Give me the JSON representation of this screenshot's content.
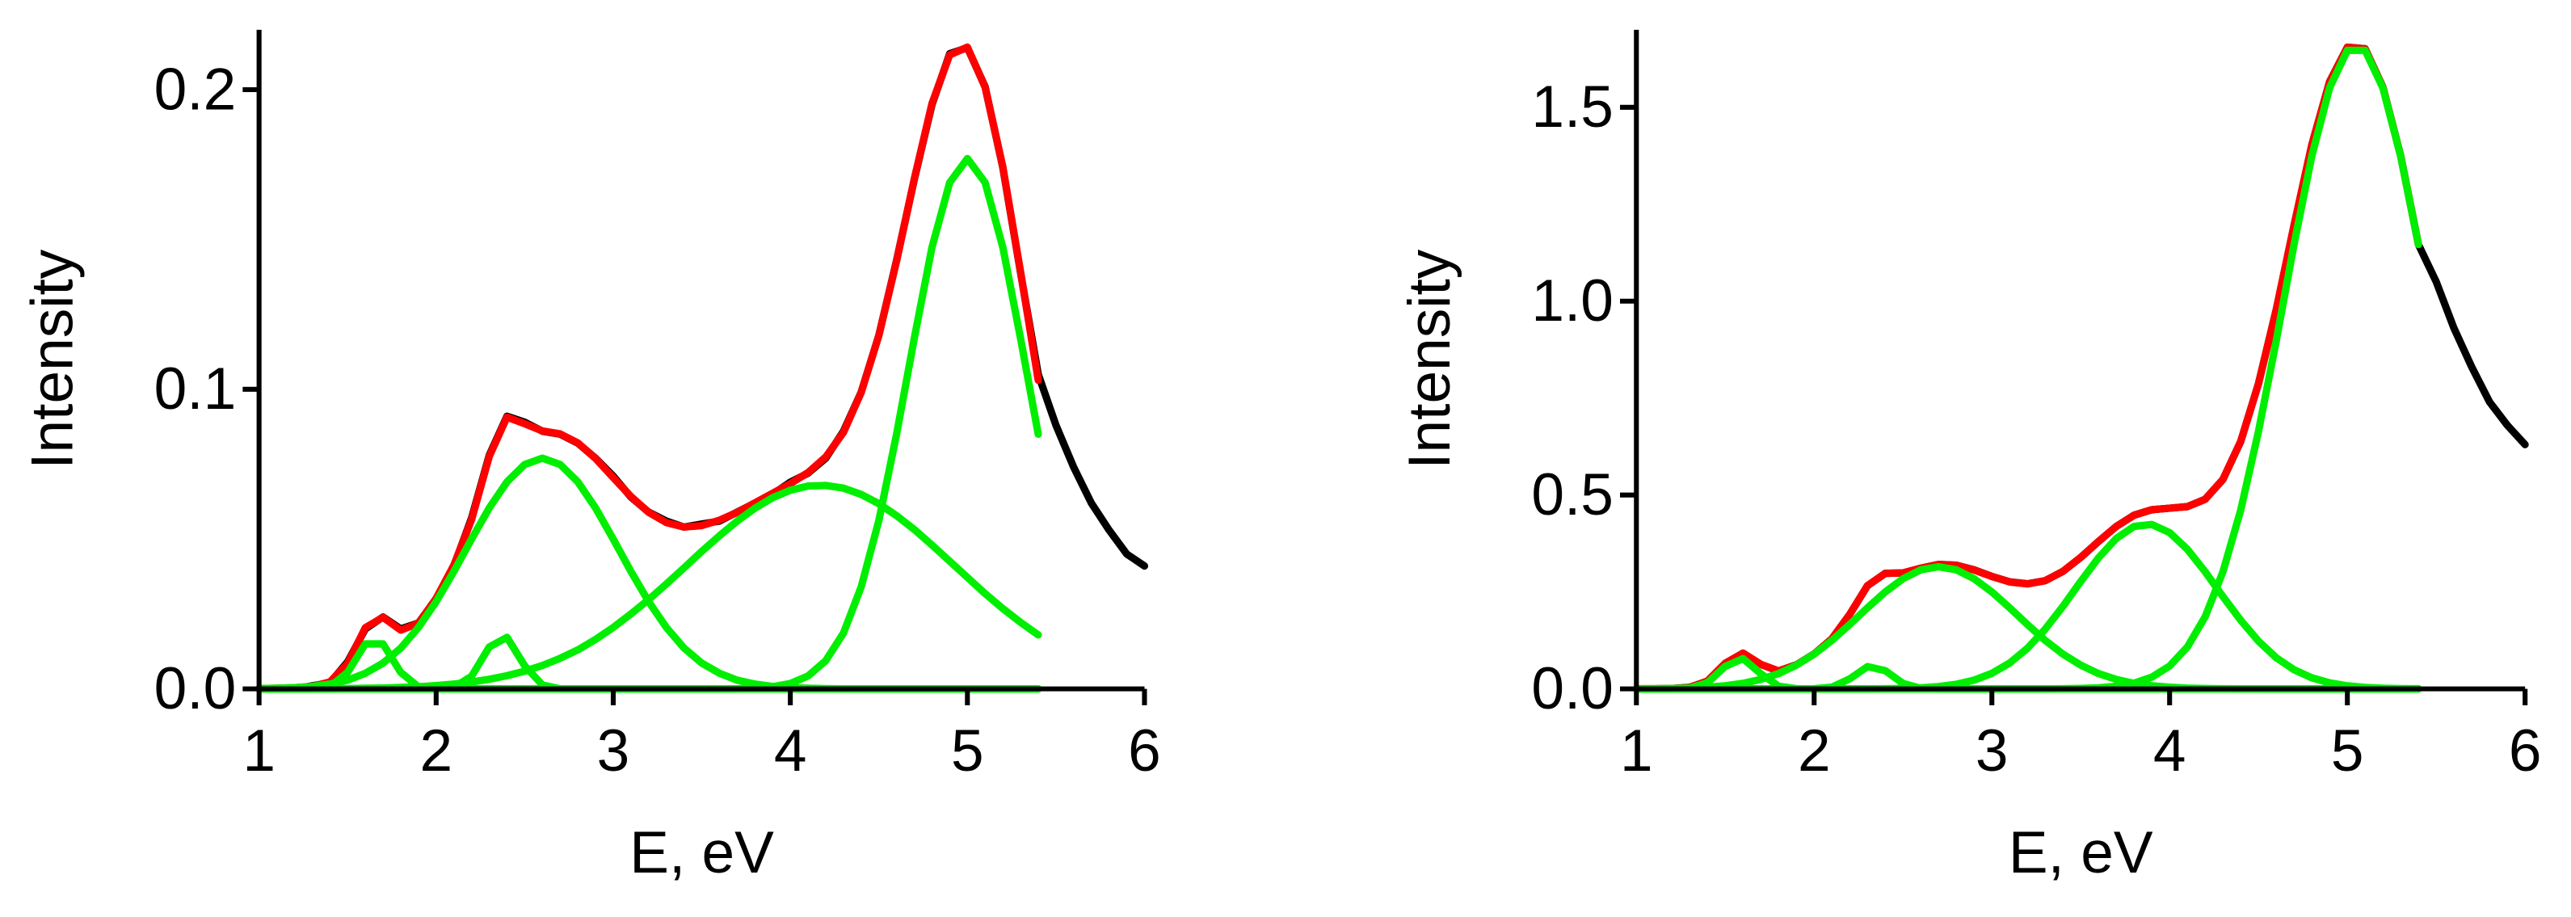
{
  "chart_data": [
    {
      "type": "line",
      "xlabel": "E, eV",
      "ylabel": "Intensity",
      "x": [
        1,
        1.1,
        1.2,
        1.3,
        1.4,
        1.5,
        1.6,
        1.7,
        1.8,
        1.9,
        2,
        2.1,
        2.2,
        2.3,
        2.4,
        2.5,
        2.6,
        2.7,
        2.8,
        2.9,
        3,
        3.1,
        3.2,
        3.3,
        3.4,
        3.5,
        3.6,
        3.7,
        3.8,
        3.9,
        4,
        4.1,
        4.2,
        4.3,
        4.4,
        4.5,
        4.6,
        4.7,
        4.8,
        4.9,
        5,
        5.1,
        5.2,
        5.3,
        5.4,
        5.5,
        5.6,
        5.7,
        5.8,
        5.9,
        6
      ],
      "xlim": [
        1,
        6
      ],
      "xticks": [
        1,
        2,
        3,
        4,
        5,
        6
      ],
      "ylim": [
        0,
        0.22
      ],
      "yticks": [
        {
          "value": 0,
          "label": "0.0"
        },
        {
          "value": 0.1,
          "label": "0.1"
        },
        {
          "value": 0.2,
          "label": "0.2"
        }
      ],
      "series": [
        {
          "color": "#000000",
          "values": [
            0,
            0,
            0,
            0.001,
            0.002,
            0.009,
            0.02,
            0.024,
            0.02,
            0.022,
            0.03,
            0.041,
            0.057,
            0.078,
            0.091,
            0.089,
            0.086,
            0.085,
            0.082,
            0.077,
            0.071,
            0.064,
            0.059,
            0.056,
            0.054,
            0.055,
            0.056,
            0.059,
            0.062,
            0.065,
            0.069,
            0.072,
            0.077,
            0.086,
            0.099,
            0.118,
            0.143,
            0.17,
            0.195,
            0.212,
            0.214,
            0.201,
            0.174,
            0.139,
            0.105,
            0.088,
            0.074,
            0.062,
            0.053,
            0.045,
            0.041
          ]
        },
        {
          "color": "#ff0000",
          "values": [
            0.0001,
            0.0002,
            0.0004,
            0.0008,
            0.0023,
            0.0085,
            0.0204,
            0.0239,
            0.0196,
            0.0219,
            0.0302,
            0.0413,
            0.0565,
            0.0776,
            0.0907,
            0.0885,
            0.0861,
            0.0851,
            0.0821,
            0.0769,
            0.0705,
            0.0642,
            0.0589,
            0.0555,
            0.054,
            0.0545,
            0.0563,
            0.0589,
            0.0621,
            0.0653,
            0.0685,
            0.0722,
            0.0774,
            0.0856,
            0.0989,
            0.118,
            0.1428,
            0.1702,
            0.1954,
            0.2116,
            0.2142,
            0.2008,
            0.1742,
            0.1392,
            0.103,
            null,
            null,
            null,
            null,
            null,
            null
          ]
        },
        {
          "color": "#00ee00",
          "values": [
            0,
            0,
            0,
            0,
            0.0007,
            0.0055,
            0.015,
            0.015,
            0.0055,
            0.0007,
            0,
            0,
            0,
            0,
            0,
            0,
            0,
            0,
            0,
            0,
            0,
            0,
            0,
            0,
            0,
            0,
            0,
            0,
            0,
            0,
            0,
            0,
            0,
            0,
            0,
            0,
            0,
            0,
            0,
            0,
            0,
            0,
            0,
            0,
            0,
            null,
            null,
            null,
            null,
            null,
            null
          ]
        },
        {
          "color": "#00ee00",
          "values": [
            0,
            0,
            0,
            0,
            0,
            0,
            0,
            0,
            0,
            0,
            0,
            0.0005,
            0.0042,
            0.014,
            0.0172,
            0.0077,
            0.0013,
            0,
            0,
            0,
            0,
            0,
            0,
            0,
            0,
            0,
            0,
            0,
            0,
            0,
            0,
            0,
            0,
            0,
            0,
            0,
            0,
            0,
            0,
            0,
            0,
            0,
            0,
            0,
            0,
            null,
            null,
            null,
            null,
            null,
            null
          ]
        },
        {
          "color": "#00ee00",
          "values": [
            0.0001,
            0.0002,
            0.0004,
            0.0008,
            0.0016,
            0.0029,
            0.0052,
            0.0086,
            0.0136,
            0.0205,
            0.0291,
            0.0392,
            0.05,
            0.0604,
            0.0691,
            0.0749,
            0.077,
            0.0749,
            0.0691,
            0.0604,
            0.05,
            0.0392,
            0.0291,
            0.0205,
            0.0136,
            0.0086,
            0.0052,
            0.0029,
            0.0016,
            0.0008,
            0.0004,
            0.0002,
            0.0001,
            0,
            0,
            0,
            0,
            0,
            0,
            0,
            0,
            0,
            0,
            0,
            0,
            null,
            null,
            null,
            null,
            null,
            null
          ]
        },
        {
          "color": "#00ee00",
          "values": [
            0,
            0,
            0,
            0,
            0,
            0.0001,
            0.0002,
            0.0003,
            0.0005,
            0.0007,
            0.0011,
            0.0016,
            0.0023,
            0.0032,
            0.0044,
            0.0059,
            0.0078,
            0.0102,
            0.013,
            0.0165,
            0.0205,
            0.025,
            0.0298,
            0.035,
            0.0404,
            0.0459,
            0.0511,
            0.056,
            0.0603,
            0.0638,
            0.0663,
            0.0677,
            0.0679,
            0.067,
            0.0649,
            0.0618,
            0.0578,
            0.0532,
            0.048,
            0.0426,
            0.0372,
            0.0318,
            0.0268,
            0.0222,
            0.018,
            null,
            null,
            null,
            null,
            null,
            null
          ]
        },
        {
          "color": "#00ee00",
          "values": [
            0,
            0,
            0,
            0,
            0,
            0,
            0,
            0,
            0,
            0,
            0,
            0,
            0,
            0,
            0,
            0,
            0,
            0,
            0,
            0,
            0,
            0,
            0,
            0,
            0,
            0,
            0,
            0,
            0.0002,
            0.0007,
            0.0018,
            0.0043,
            0.0094,
            0.0186,
            0.034,
            0.0562,
            0.085,
            0.117,
            0.1474,
            0.169,
            0.177,
            0.169,
            0.1474,
            0.117,
            0.085,
            null,
            null,
            null,
            null,
            null,
            null
          ]
        }
      ]
    },
    {
      "type": "line",
      "xlabel": "E, eV",
      "ylabel": "Intensity",
      "x": [
        1,
        1.1,
        1.2,
        1.3,
        1.4,
        1.5,
        1.6,
        1.7,
        1.8,
        1.9,
        2,
        2.1,
        2.2,
        2.3,
        2.4,
        2.5,
        2.6,
        2.7,
        2.8,
        2.9,
        3,
        3.1,
        3.2,
        3.3,
        3.4,
        3.5,
        3.6,
        3.7,
        3.8,
        3.9,
        4,
        4.1,
        4.2,
        4.3,
        4.4,
        4.5,
        4.6,
        4.7,
        4.8,
        4.9,
        5,
        5.1,
        5.2,
        5.3,
        5.4,
        5.5,
        5.6,
        5.7,
        5.8,
        5.9,
        6
      ],
      "xlim": [
        1,
        6
      ],
      "xticks": [
        1,
        2,
        3,
        4,
        5,
        6
      ],
      "ylim": [
        0,
        1.7
      ],
      "yticks": [
        {
          "value": 0,
          "label": "0.0"
        },
        {
          "value": 0.5,
          "label": "0.5"
        },
        {
          "value": 1,
          "label": "1.0"
        },
        {
          "value": 1.5,
          "label": "1.5"
        }
      ],
      "series": [
        {
          "color": "#000000",
          "values": [
            0,
            0,
            0.001,
            0.004,
            0.02,
            0.066,
            0.092,
            0.063,
            0.046,
            0.062,
            0.09,
            0.129,
            0.192,
            0.266,
            0.298,
            0.299,
            0.311,
            0.321,
            0.319,
            0.307,
            0.29,
            0.276,
            0.271,
            0.279,
            0.303,
            0.339,
            0.38,
            0.419,
            0.448,
            0.462,
            0.466,
            0.47,
            0.489,
            0.54,
            0.638,
            0.787,
            0.978,
            1.195,
            1.403,
            1.566,
            1.655,
            1.651,
            1.552,
            1.375,
            1.146,
            1.05,
            0.93,
            0.83,
            0.74,
            0.68,
            0.63
          ]
        },
        {
          "color": "#ff0000",
          "values": [
            0.0002,
            0.0004,
            0.001,
            0.0036,
            0.0202,
            0.0659,
            0.0922,
            0.0633,
            0.0464,
            0.0616,
            0.09,
            0.1293,
            0.1918,
            0.2664,
            0.2975,
            0.2993,
            0.3114,
            0.3209,
            0.3188,
            0.3065,
            0.29,
            0.2757,
            0.2706,
            0.279,
            0.3031,
            0.3392,
            0.3802,
            0.4189,
            0.4478,
            0.4621,
            0.466,
            0.47,
            0.489,
            0.5404,
            0.6382,
            0.787,
            0.9782,
            1.1954,
            1.4025,
            1.5655,
            1.6549,
            1.6508,
            1.5517,
            1.3747,
            1.1463,
            null,
            null,
            null,
            null,
            null,
            null
          ]
        },
        {
          "color": "#00ee00",
          "values": [
            0,
            0,
            0,
            0.0016,
            0.016,
            0.058,
            0.078,
            0.039,
            0.007,
            0.0005,
            0,
            0,
            0,
            0,
            0,
            0,
            0,
            0,
            0,
            0,
            0,
            0,
            0,
            0,
            0,
            0,
            0,
            0,
            0,
            0,
            0,
            0,
            0,
            0,
            0,
            0,
            0,
            0,
            0,
            0,
            0,
            0,
            0,
            0,
            0,
            null,
            null,
            null,
            null,
            null,
            null
          ]
        },
        {
          "color": "#00ee00",
          "values": [
            0,
            0,
            0,
            0,
            0,
            0,
            0,
            0,
            0,
            0,
            0.0003,
            0.0043,
            0.0258,
            0.0574,
            0.047,
            0.0141,
            0.0016,
            0,
            0,
            0,
            0,
            0,
            0,
            0,
            0,
            0,
            0,
            0,
            0,
            0,
            0,
            0,
            0,
            0,
            0,
            0,
            0,
            0,
            0,
            0,
            0,
            0,
            0,
            0,
            0,
            null,
            null,
            null,
            null,
            null,
            null
          ]
        },
        {
          "color": "#00ee00",
          "values": [
            0.0002,
            0.0004,
            0.001,
            0.002,
            0.0042,
            0.0079,
            0.0142,
            0.0243,
            0.0394,
            0.0611,
            0.0897,
            0.125,
            0.166,
            0.209,
            0.25,
            0.284,
            0.307,
            0.315,
            0.307,
            0.284,
            0.25,
            0.209,
            0.166,
            0.125,
            0.0897,
            0.0611,
            0.0394,
            0.0243,
            0.0142,
            0.0079,
            0.0042,
            0.002,
            0.001,
            0.0004,
            0.0002,
            0,
            0,
            0,
            0,
            0,
            0,
            0,
            0,
            0,
            0,
            null,
            null,
            null,
            null,
            null,
            null
          ]
        },
        {
          "color": "#00ee00",
          "values": [
            0,
            0,
            0,
            0,
            0,
            0,
            0,
            0,
            0,
            0,
            0,
            0,
            0,
            0,
            0.0005,
            0.0012,
            0.0028,
            0.0059,
            0.0118,
            0.0225,
            0.04,
            0.0667,
            0.1046,
            0.154,
            0.213,
            0.277,
            0.338,
            0.388,
            0.419,
            0.424,
            0.403,
            0.36,
            0.302,
            0.238,
            0.177,
            0.123,
            0.0802,
            0.0494,
            0.0285,
            0.0155,
            0.0079,
            0.0038,
            0.0017,
            0.0007,
            0.0003,
            null,
            null,
            null,
            null,
            null,
            null
          ]
        },
        {
          "color": "#00ee00",
          "values": [
            0,
            0,
            0,
            0,
            0,
            0,
            0,
            0,
            0,
            0,
            0,
            0,
            0,
            0,
            0,
            0,
            0,
            0,
            0,
            0,
            0,
            0,
            0,
            0,
            0.0004,
            0.0011,
            0.0028,
            0.0066,
            0.0146,
            0.0302,
            0.0588,
            0.108,
            0.186,
            0.302,
            0.461,
            0.664,
            0.898,
            1.146,
            1.374,
            1.55,
            1.647,
            1.647,
            1.55,
            1.374,
            1.146,
            null,
            null,
            null,
            null,
            null,
            null
          ]
        }
      ]
    }
  ]
}
